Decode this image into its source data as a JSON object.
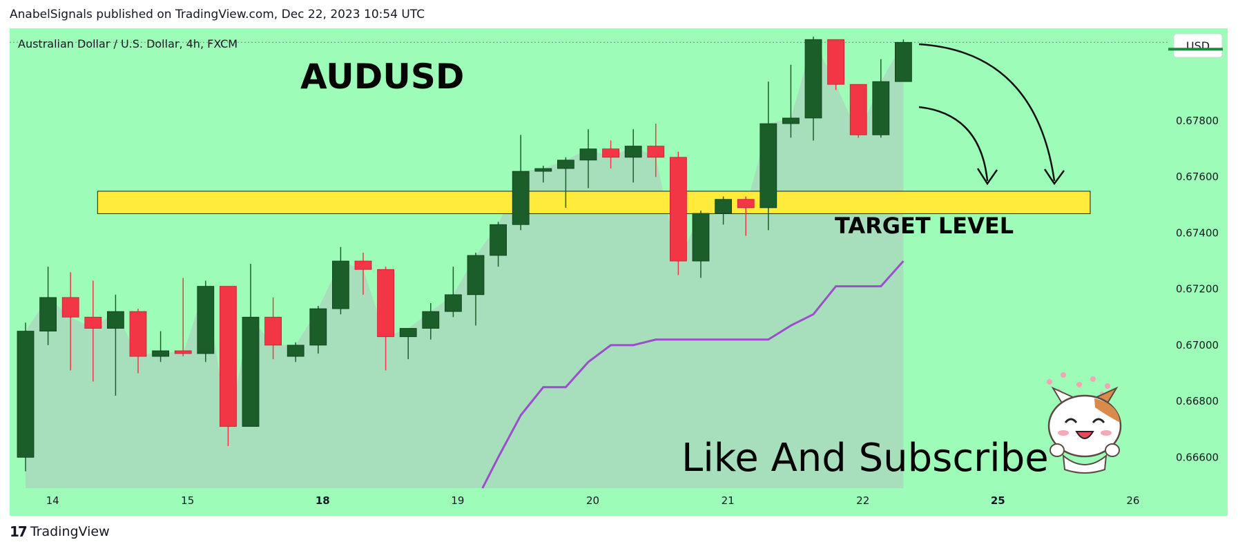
{
  "header": {
    "publish_line": "AnabelSignals published on TradingView.com, Dec 22, 2023 10:54 UTC",
    "symbol_line": "Australian Dollar / U.S. Dollar, 4h, FXCM",
    "currency_button": "USD"
  },
  "footer": {
    "logo_text": "TradingView"
  },
  "annotations": {
    "title": "AUDUSD",
    "target_label": "TARGET LEVEL",
    "cta": "Like And Subscribe"
  },
  "colors": {
    "background": "#9dfdb8",
    "bull": "#1b5e2a",
    "bear": "#f23645",
    "target_zone": "#ffeb3b",
    "indicator": "#9c4dcc",
    "area_fill": "#a8dcbc"
  },
  "chart_data": {
    "type": "candlestick",
    "ylim": [
      0.6649,
      0.6813
    ],
    "y_ticks": [
      0.678,
      0.676,
      0.674,
      0.672,
      0.67,
      0.668,
      0.666
    ],
    "y_tick_labels": [
      "0.67800",
      "0.67600",
      "0.67400",
      "0.67200",
      "0.67000",
      "0.66800",
      "0.66600"
    ],
    "x_ticks": [
      {
        "label": "14",
        "index": 1.2,
        "bold": false
      },
      {
        "label": "15",
        "index": 7.2,
        "bold": false
      },
      {
        "label": "18",
        "index": 13.2,
        "bold": true
      },
      {
        "label": "19",
        "index": 19.2,
        "bold": false
      },
      {
        "label": "20",
        "index": 25.2,
        "bold": false
      },
      {
        "label": "21",
        "index": 31.2,
        "bold": false
      },
      {
        "label": "22",
        "index": 37.2,
        "bold": false
      },
      {
        "label": "25",
        "index": 43.2,
        "bold": true
      },
      {
        "label": "26",
        "index": 49.2,
        "bold": false
      }
    ],
    "candles": [
      {
        "o": 0.666,
        "h": 0.6708,
        "l": 0.6655,
        "c": 0.6705
      },
      {
        "o": 0.6705,
        "h": 0.6728,
        "l": 0.67,
        "c": 0.6717
      },
      {
        "o": 0.6717,
        "h": 0.6726,
        "l": 0.6691,
        "c": 0.671
      },
      {
        "o": 0.671,
        "h": 0.6723,
        "l": 0.6687,
        "c": 0.6706
      },
      {
        "o": 0.6706,
        "h": 0.6718,
        "l": 0.6682,
        "c": 0.6712
      },
      {
        "o": 0.6712,
        "h": 0.6713,
        "l": 0.669,
        "c": 0.6696
      },
      {
        "o": 0.6696,
        "h": 0.6705,
        "l": 0.6694,
        "c": 0.6698
      },
      {
        "o": 0.6698,
        "h": 0.6724,
        "l": 0.6696,
        "c": 0.6697
      },
      {
        "o": 0.6697,
        "h": 0.6723,
        "l": 0.6694,
        "c": 0.6721
      },
      {
        "o": 0.6721,
        "h": 0.6721,
        "l": 0.6664,
        "c": 0.6671
      },
      {
        "o": 0.6671,
        "h": 0.6729,
        "l": 0.6671,
        "c": 0.671
      },
      {
        "o": 0.671,
        "h": 0.6717,
        "l": 0.6695,
        "c": 0.67
      },
      {
        "o": 0.6696,
        "h": 0.6701,
        "l": 0.6694,
        "c": 0.67
      },
      {
        "o": 0.67,
        "h": 0.6714,
        "l": 0.6697,
        "c": 0.6713
      },
      {
        "o": 0.6713,
        "h": 0.6735,
        "l": 0.6711,
        "c": 0.673
      },
      {
        "o": 0.673,
        "h": 0.6733,
        "l": 0.6718,
        "c": 0.6727
      },
      {
        "o": 0.6727,
        "h": 0.6728,
        "l": 0.6691,
        "c": 0.6703
      },
      {
        "o": 0.6703,
        "h": 0.6706,
        "l": 0.6695,
        "c": 0.6706
      },
      {
        "o": 0.6706,
        "h": 0.6715,
        "l": 0.6702,
        "c": 0.6712
      },
      {
        "o": 0.6712,
        "h": 0.6728,
        "l": 0.671,
        "c": 0.6718
      },
      {
        "o": 0.6718,
        "h": 0.6733,
        "l": 0.6707,
        "c": 0.6732
      },
      {
        "o": 0.6732,
        "h": 0.6744,
        "l": 0.6728,
        "c": 0.6743
      },
      {
        "o": 0.6743,
        "h": 0.6775,
        "l": 0.6741,
        "c": 0.6762
      },
      {
        "o": 0.6762,
        "h": 0.6764,
        "l": 0.6758,
        "c": 0.6763
      },
      {
        "o": 0.6763,
        "h": 0.6767,
        "l": 0.6749,
        "c": 0.6766
      },
      {
        "o": 0.6766,
        "h": 0.6777,
        "l": 0.6756,
        "c": 0.677
      },
      {
        "o": 0.677,
        "h": 0.6773,
        "l": 0.6763,
        "c": 0.6767
      },
      {
        "o": 0.6767,
        "h": 0.6777,
        "l": 0.6758,
        "c": 0.6771
      },
      {
        "o": 0.6771,
        "h": 0.6779,
        "l": 0.676,
        "c": 0.6767
      },
      {
        "o": 0.6767,
        "h": 0.6769,
        "l": 0.6725,
        "c": 0.673
      },
      {
        "o": 0.673,
        "h": 0.6748,
        "l": 0.6724,
        "c": 0.6747
      },
      {
        "o": 0.6747,
        "h": 0.6753,
        "l": 0.6743,
        "c": 0.6752
      },
      {
        "o": 0.6752,
        "h": 0.6753,
        "l": 0.6739,
        "c": 0.6749
      },
      {
        "o": 0.6749,
        "h": 0.6794,
        "l": 0.6741,
        "c": 0.6779
      },
      {
        "o": 0.6779,
        "h": 0.68,
        "l": 0.6774,
        "c": 0.6781
      },
      {
        "o": 0.6781,
        "h": 0.681,
        "l": 0.6773,
        "c": 0.6809
      },
      {
        "o": 0.6809,
        "h": 0.6809,
        "l": 0.6791,
        "c": 0.6793
      },
      {
        "o": 0.6793,
        "h": 0.6793,
        "l": 0.6774,
        "c": 0.6775
      },
      {
        "o": 0.6775,
        "h": 0.6802,
        "l": 0.6774,
        "c": 0.6794
      },
      {
        "o": 0.6794,
        "h": 0.6809,
        "l": 0.6794,
        "c": 0.6808
      }
    ],
    "target_zone": {
      "from": 0.67469,
      "to": 0.67549,
      "start_index": 3.2,
      "end_index": 47.3
    },
    "indicator_line": {
      "name": "",
      "points": [
        [
          20.3,
          0.6649
        ],
        [
          21.0,
          0.666
        ],
        [
          22.0,
          0.6675
        ],
        [
          23.0,
          0.6685
        ],
        [
          24.0,
          0.6685
        ],
        [
          25.0,
          0.6694
        ],
        [
          26.0,
          0.67
        ],
        [
          27.0,
          0.67
        ],
        [
          28.0,
          0.6702
        ],
        [
          29.0,
          0.6702
        ],
        [
          30.0,
          0.6702
        ],
        [
          31.0,
          0.6702
        ],
        [
          32.0,
          0.6702
        ],
        [
          33.0,
          0.6702
        ],
        [
          34.0,
          0.6707
        ],
        [
          35.0,
          0.6711
        ],
        [
          36.0,
          0.6721
        ],
        [
          37.0,
          0.6721
        ],
        [
          38.0,
          0.6721
        ],
        [
          39.0,
          0.673
        ]
      ]
    },
    "current_price": 0.6808
  }
}
